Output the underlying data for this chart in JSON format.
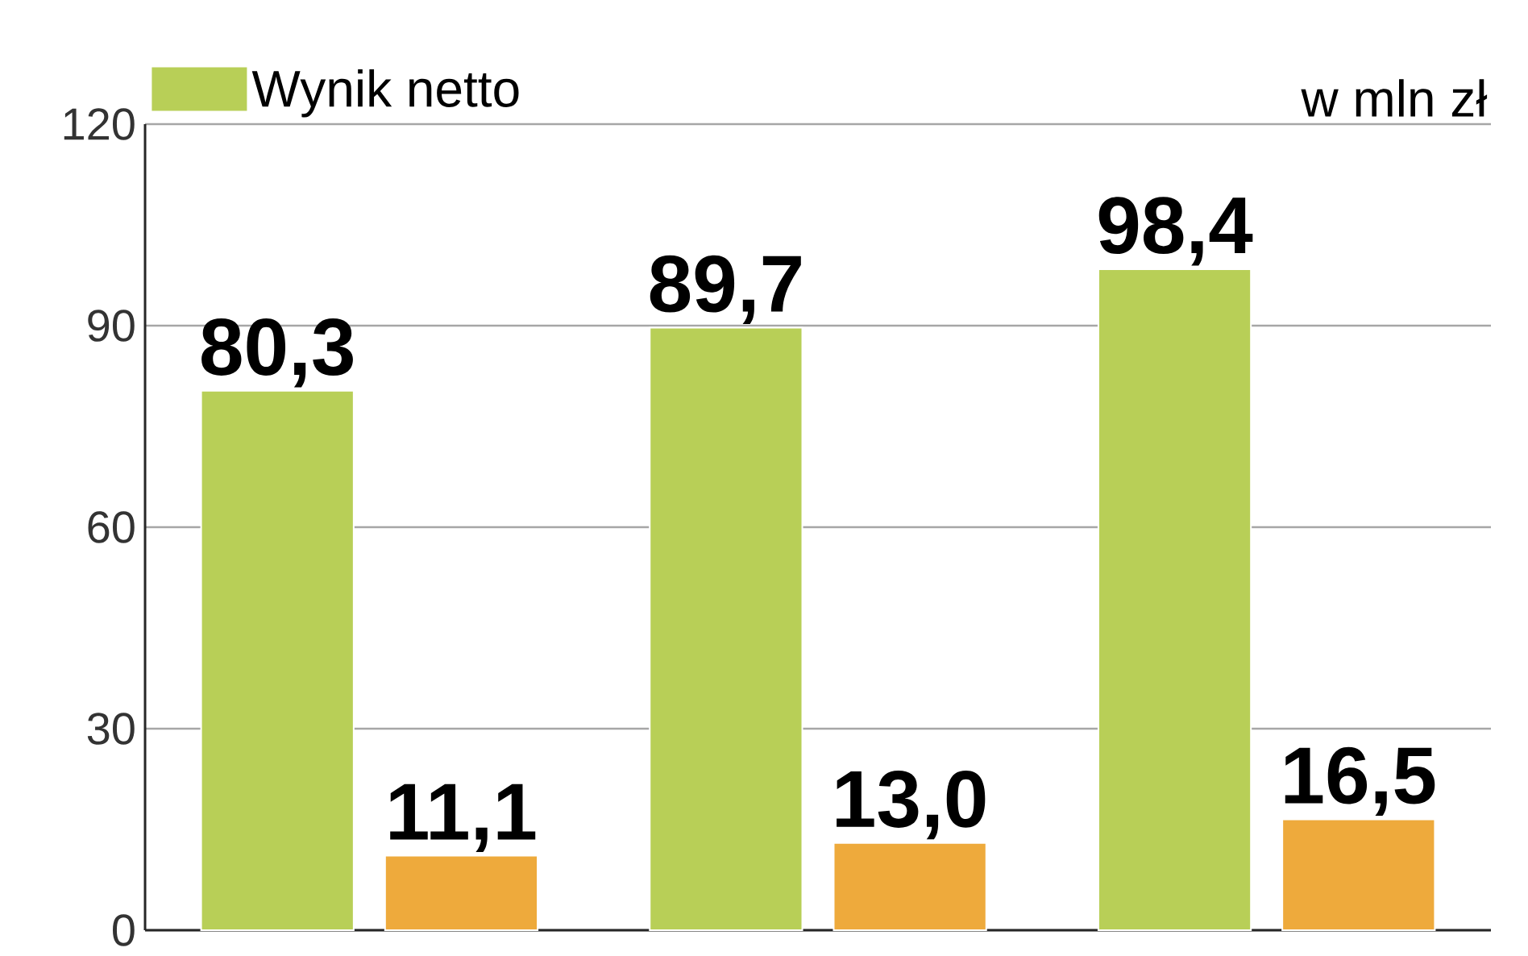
{
  "chart_data": {
    "type": "bar",
    "categories": [
      null,
      null,
      null
    ],
    "series": [
      {
        "name": "Wynik netto",
        "color": "#b8cf57",
        "values": [
          80.3,
          89.7,
          98.4
        ],
        "value_labels": [
          "80,3",
          "89,7",
          "98,4"
        ]
      },
      {
        "color": "#eeaa3c",
        "values": [
          11.1,
          13.0,
          16.5
        ],
        "value_labels": [
          "11,1",
          "13,0",
          "16,5"
        ]
      }
    ],
    "ylim": [
      0,
      120
    ],
    "yticks": [
      0,
      30,
      60,
      90,
      120
    ],
    "grid": "y",
    "legend": "top left",
    "annotations": [
      "w mln zł"
    ]
  }
}
